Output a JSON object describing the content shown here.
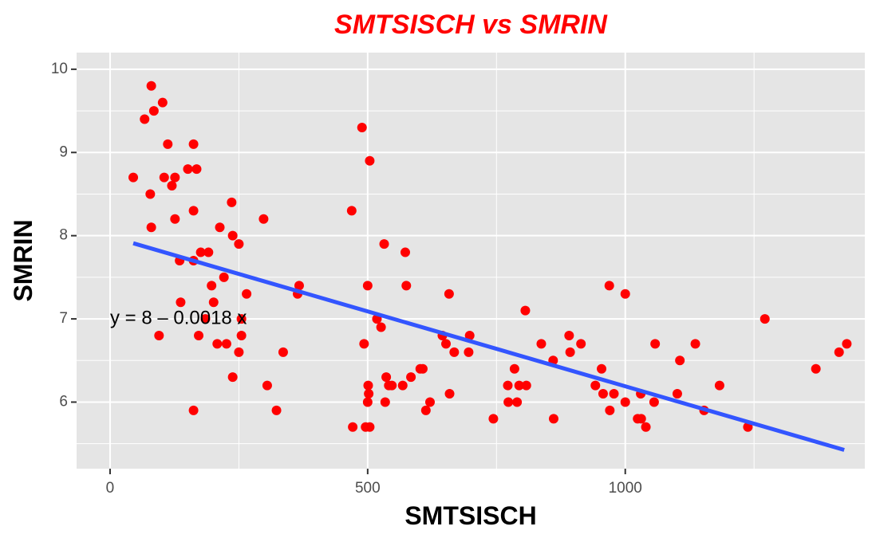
{
  "chart_data": {
    "type": "scatter",
    "title": "SMTSISCH vs SMRIN",
    "xlabel": "SMTSISCH",
    "ylabel": "SMRIN",
    "xlim": [
      -65,
      1465
    ],
    "ylim": [
      5.2,
      10.2
    ],
    "x_ticks": [
      0,
      500,
      1000
    ],
    "y_ticks": [
      6,
      7,
      8,
      9,
      10
    ],
    "x_tick_labels": [
      "0",
      "500",
      "1000"
    ],
    "y_tick_labels": [
      "6",
      "7",
      "8",
      "9",
      "10"
    ],
    "grid": true,
    "legend": "none",
    "colors": {
      "title": "#ff0000",
      "points": "#ff0000",
      "fit_line": "#3355ff",
      "panel": "#e5e5e5",
      "grid": "#ffffff"
    },
    "fit": {
      "intercept": 7.99,
      "slope": -0.0018,
      "x_range": [
        45,
        1425
      ]
    },
    "annotation": {
      "text": "y = 8 – 0.0018 x",
      "x": 0,
      "y": 7.0
    },
    "points": [
      {
        "x": 45,
        "y": 8.7
      },
      {
        "x": 67,
        "y": 9.4
      },
      {
        "x": 78,
        "y": 8.5
      },
      {
        "x": 80,
        "y": 9.8
      },
      {
        "x": 80,
        "y": 8.1
      },
      {
        "x": 85,
        "y": 9.5
      },
      {
        "x": 95,
        "y": 6.8
      },
      {
        "x": 102,
        "y": 9.6
      },
      {
        "x": 105,
        "y": 8.7
      },
      {
        "x": 112,
        "y": 9.1
      },
      {
        "x": 120,
        "y": 8.6
      },
      {
        "x": 126,
        "y": 8.7
      },
      {
        "x": 126,
        "y": 8.2
      },
      {
        "x": 135,
        "y": 7.7
      },
      {
        "x": 137,
        "y": 7.2
      },
      {
        "x": 151,
        "y": 8.8
      },
      {
        "x": 162,
        "y": 9.1
      },
      {
        "x": 162,
        "y": 8.3
      },
      {
        "x": 162,
        "y": 7.7
      },
      {
        "x": 162,
        "y": 5.9
      },
      {
        "x": 168,
        "y": 8.8
      },
      {
        "x": 172,
        "y": 6.8
      },
      {
        "x": 176,
        "y": 7.8
      },
      {
        "x": 185,
        "y": 7.0
      },
      {
        "x": 191,
        "y": 7.8
      },
      {
        "x": 197,
        "y": 7.4
      },
      {
        "x": 201,
        "y": 7.2
      },
      {
        "x": 208,
        "y": 6.7
      },
      {
        "x": 213,
        "y": 8.1
      },
      {
        "x": 221,
        "y": 7.5
      },
      {
        "x": 226,
        "y": 6.7
      },
      {
        "x": 236,
        "y": 8.4
      },
      {
        "x": 238,
        "y": 8.0
      },
      {
        "x": 238,
        "y": 6.3
      },
      {
        "x": 250,
        "y": 7.9
      },
      {
        "x": 250,
        "y": 6.6
      },
      {
        "x": 255,
        "y": 7.0
      },
      {
        "x": 255,
        "y": 6.8
      },
      {
        "x": 265,
        "y": 7.3
      },
      {
        "x": 298,
        "y": 8.2
      },
      {
        "x": 305,
        "y": 6.2
      },
      {
        "x": 323,
        "y": 5.9
      },
      {
        "x": 336,
        "y": 6.6
      },
      {
        "x": 364,
        "y": 7.3
      },
      {
        "x": 367,
        "y": 7.4
      },
      {
        "x": 469,
        "y": 8.3
      },
      {
        "x": 471,
        "y": 5.7
      },
      {
        "x": 489,
        "y": 9.3
      },
      {
        "x": 493,
        "y": 6.7
      },
      {
        "x": 496,
        "y": 5.7
      },
      {
        "x": 500,
        "y": 7.4
      },
      {
        "x": 500,
        "y": 6.0
      },
      {
        "x": 501,
        "y": 6.2
      },
      {
        "x": 502,
        "y": 6.1
      },
      {
        "x": 504,
        "y": 8.9
      },
      {
        "x": 504,
        "y": 5.7
      },
      {
        "x": 518,
        "y": 7.0
      },
      {
        "x": 526,
        "y": 6.9
      },
      {
        "x": 532,
        "y": 7.9
      },
      {
        "x": 534,
        "y": 6.0
      },
      {
        "x": 536,
        "y": 6.3
      },
      {
        "x": 541,
        "y": 6.2
      },
      {
        "x": 547,
        "y": 6.2
      },
      {
        "x": 568,
        "y": 6.2
      },
      {
        "x": 573,
        "y": 7.8
      },
      {
        "x": 575,
        "y": 7.4
      },
      {
        "x": 584,
        "y": 6.3
      },
      {
        "x": 602,
        "y": 6.4
      },
      {
        "x": 607,
        "y": 6.4
      },
      {
        "x": 613,
        "y": 5.9
      },
      {
        "x": 621,
        "y": 6.0
      },
      {
        "x": 645,
        "y": 6.8
      },
      {
        "x": 652,
        "y": 6.7
      },
      {
        "x": 658,
        "y": 7.3
      },
      {
        "x": 659,
        "y": 6.1
      },
      {
        "x": 668,
        "y": 6.6
      },
      {
        "x": 696,
        "y": 6.6
      },
      {
        "x": 698,
        "y": 6.8
      },
      {
        "x": 744,
        "y": 5.8
      },
      {
        "x": 772,
        "y": 6.2
      },
      {
        "x": 773,
        "y": 6.0
      },
      {
        "x": 785,
        "y": 6.4
      },
      {
        "x": 790,
        "y": 6.0
      },
      {
        "x": 794,
        "y": 6.2
      },
      {
        "x": 806,
        "y": 7.1
      },
      {
        "x": 808,
        "y": 6.2
      },
      {
        "x": 837,
        "y": 6.7
      },
      {
        "x": 860,
        "y": 6.5
      },
      {
        "x": 861,
        "y": 5.8
      },
      {
        "x": 891,
        "y": 6.8
      },
      {
        "x": 893,
        "y": 6.6
      },
      {
        "x": 914,
        "y": 6.7
      },
      {
        "x": 942,
        "y": 6.2
      },
      {
        "x": 954,
        "y": 6.4
      },
      {
        "x": 957,
        "y": 6.1
      },
      {
        "x": 969,
        "y": 7.4
      },
      {
        "x": 970,
        "y": 5.9
      },
      {
        "x": 978,
        "y": 6.1
      },
      {
        "x": 1000,
        "y": 7.3
      },
      {
        "x": 1000,
        "y": 6.0
      },
      {
        "x": 1024,
        "y": 5.8
      },
      {
        "x": 1030,
        "y": 6.1
      },
      {
        "x": 1031,
        "y": 5.8
      },
      {
        "x": 1040,
        "y": 5.7
      },
      {
        "x": 1056,
        "y": 6.0
      },
      {
        "x": 1058,
        "y": 6.7
      },
      {
        "x": 1101,
        "y": 6.1
      },
      {
        "x": 1106,
        "y": 6.5
      },
      {
        "x": 1136,
        "y": 6.7
      },
      {
        "x": 1153,
        "y": 5.9
      },
      {
        "x": 1183,
        "y": 6.2
      },
      {
        "x": 1238,
        "y": 5.7
      },
      {
        "x": 1271,
        "y": 7.0
      },
      {
        "x": 1370,
        "y": 6.4
      },
      {
        "x": 1415,
        "y": 6.6
      },
      {
        "x": 1430,
        "y": 6.7
      }
    ]
  }
}
